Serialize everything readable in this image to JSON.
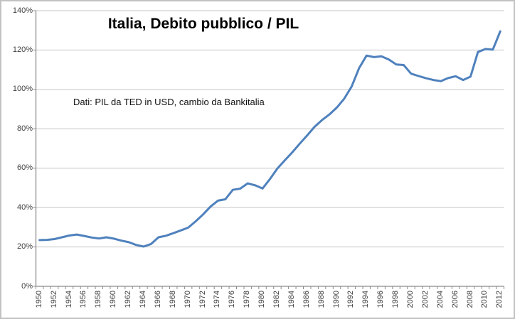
{
  "window": {
    "background": "#ffffff",
    "border_color": "#c2c2c2"
  },
  "chart_data": {
    "type": "line",
    "title": "Italia, Debito pubblico / PIL",
    "annotation": "Dati: PIL da TED in USD, cambio da Bankitalia",
    "xlabel": "",
    "ylabel": "",
    "ylim": [
      0,
      140
    ],
    "y_tick_step": 20,
    "y_tick_labels": [
      "0%",
      "20%",
      "40%",
      "60%",
      "80%",
      "100%",
      "120%",
      "140%"
    ],
    "x_tick_labels": [
      "1950",
      "1952",
      "1954",
      "1956",
      "1958",
      "1960",
      "1962",
      "1964",
      "1966",
      "1968",
      "1970",
      "1972",
      "1974",
      "1976",
      "1978",
      "1980",
      "1982",
      "1984",
      "1986",
      "1988",
      "1990",
      "1992",
      "1994",
      "1996",
      "1998",
      "2000",
      "2002",
      "2004",
      "2006",
      "2008",
      "2010",
      "2012"
    ],
    "grid": "horizontal",
    "legend": "none",
    "line_color": "#4f81bd",
    "gridline_color": "#c6c6c6",
    "axis_color": "#8c8c8c",
    "tick_label_color": "#3f3f3f",
    "series": [
      {
        "name": "Debito pubblico / PIL (%)",
        "x": [
          1950,
          1951,
          1952,
          1953,
          1954,
          1955,
          1956,
          1957,
          1958,
          1959,
          1960,
          1961,
          1962,
          1963,
          1964,
          1965,
          1966,
          1967,
          1968,
          1969,
          1970,
          1971,
          1972,
          1973,
          1974,
          1975,
          1976,
          1977,
          1978,
          1979,
          1980,
          1981,
          1982,
          1983,
          1984,
          1985,
          1986,
          1987,
          1988,
          1989,
          1990,
          1991,
          1992,
          1993,
          1994,
          1995,
          1996,
          1997,
          1998,
          1999,
          2000,
          2001,
          2002,
          2003,
          2004,
          2005,
          2006,
          2007,
          2008,
          2009,
          2010,
          2011,
          2012
        ],
        "values": [
          23.5,
          23.6,
          24.0,
          24.9,
          25.8,
          26.3,
          25.6,
          24.8,
          24.3,
          24.9,
          24.2,
          23.2,
          22.4,
          21.0,
          20.2,
          21.5,
          24.9,
          25.7,
          27.0,
          28.4,
          29.8,
          33.0,
          36.5,
          40.5,
          43.5,
          44.2,
          49.0,
          49.6,
          52.3,
          51.3,
          49.7,
          54.5,
          59.8,
          64.0,
          68.0,
          72.4,
          76.6,
          81.0,
          84.4,
          87.3,
          90.8,
          95.3,
          101.5,
          110.8,
          117.2,
          116.4,
          116.8,
          115.2,
          112.7,
          112.4,
          108.0,
          106.8,
          105.7,
          104.8,
          104.2,
          105.8,
          106.7,
          104.8,
          106.5,
          119.0,
          120.5,
          120.2,
          129.5
        ]
      }
    ]
  }
}
